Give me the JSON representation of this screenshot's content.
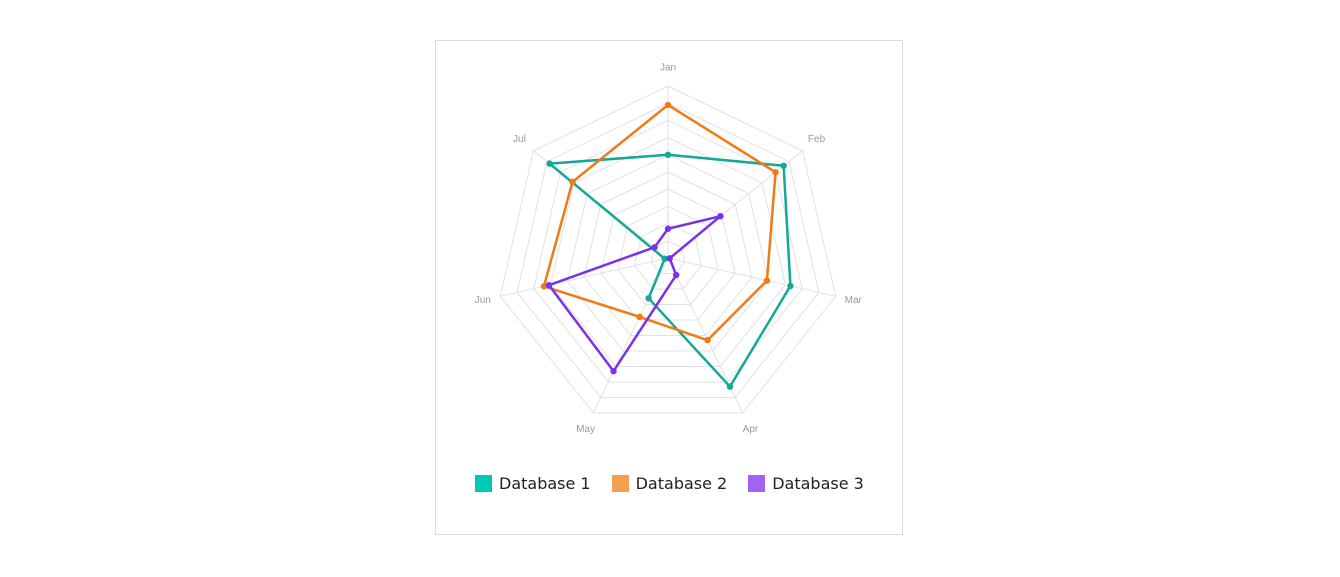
{
  "chart_data": {
    "type": "radar",
    "categories": [
      "Jan",
      "Feb",
      "Mar",
      "Apr",
      "May",
      "Jun",
      "Jul"
    ],
    "rlim": [
      0,
      10
    ],
    "grid_levels": 10,
    "grid": true,
    "legend_position": "bottom",
    "series": [
      {
        "name": "Database 1",
        "values": [
          6.0,
          8.6,
          7.3,
          8.3,
          2.6,
          0.2,
          8.8
        ],
        "color": "#14a896",
        "legend_color": "#00c8b4"
      },
      {
        "name": "Database 2",
        "values": [
          8.9,
          8.0,
          5.9,
          5.3,
          3.8,
          7.4,
          7.1
        ],
        "color": "#f07a14",
        "legend_color": "#f5a050"
      },
      {
        "name": "Database 3",
        "values": [
          1.7,
          3.9,
          0.1,
          1.1,
          7.3,
          7.1,
          1.0
        ],
        "color": "#7a32e8",
        "legend_color": "#a064f0"
      }
    ]
  }
}
